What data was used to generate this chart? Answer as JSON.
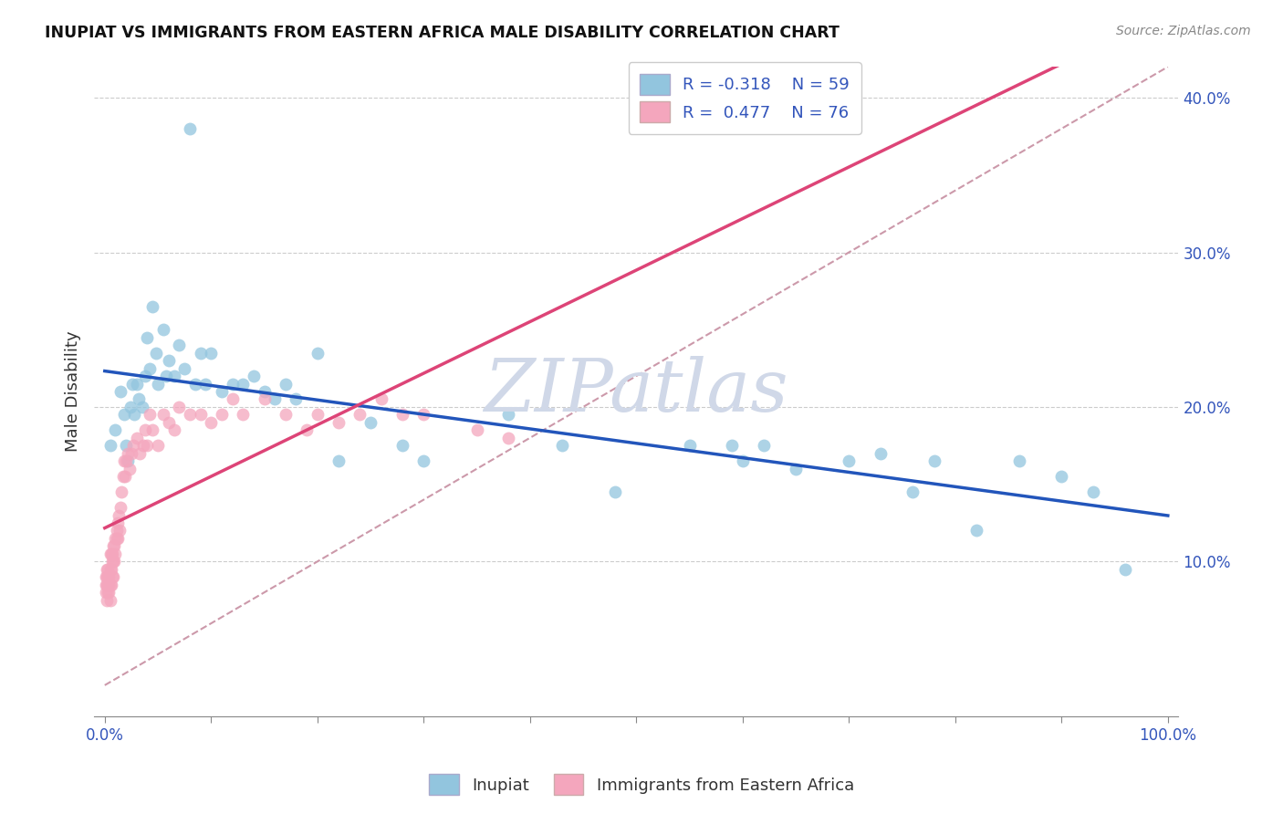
{
  "title": "INUPIAT VS IMMIGRANTS FROM EASTERN AFRICA MALE DISABILITY CORRELATION CHART",
  "source": "Source: ZipAtlas.com",
  "ylabel": "Male Disability",
  "r1": "-0.318",
  "n1": "59",
  "r2": "0.477",
  "n2": "76",
  "legend_label1": "Inupiat",
  "legend_label2": "Immigrants from Eastern Africa",
  "color1": "#92c5de",
  "color2": "#f4a6bd",
  "line1_color": "#2255bb",
  "line2_color": "#dd4477",
  "trend_line_color": "#cc99aa",
  "background_color": "#ffffff",
  "watermark": "ZIPatlas",
  "watermark_color": "#d0d8e8",
  "inupiat_x": [
    0.005,
    0.01,
    0.015,
    0.018,
    0.02,
    0.022,
    0.024,
    0.026,
    0.028,
    0.03,
    0.032,
    0.035,
    0.038,
    0.04,
    0.042,
    0.045,
    0.048,
    0.05,
    0.055,
    0.058,
    0.06,
    0.065,
    0.07,
    0.075,
    0.08,
    0.085,
    0.09,
    0.095,
    0.1,
    0.11,
    0.12,
    0.13,
    0.14,
    0.15,
    0.16,
    0.17,
    0.18,
    0.2,
    0.22,
    0.25,
    0.28,
    0.3,
    0.38,
    0.43,
    0.48,
    0.55,
    0.59,
    0.6,
    0.62,
    0.65,
    0.7,
    0.73,
    0.76,
    0.78,
    0.82,
    0.86,
    0.9,
    0.93,
    0.96
  ],
  "inupiat_y": [
    0.175,
    0.185,
    0.21,
    0.195,
    0.175,
    0.165,
    0.2,
    0.215,
    0.195,
    0.215,
    0.205,
    0.2,
    0.22,
    0.245,
    0.225,
    0.265,
    0.235,
    0.215,
    0.25,
    0.22,
    0.23,
    0.22,
    0.24,
    0.225,
    0.38,
    0.215,
    0.235,
    0.215,
    0.235,
    0.21,
    0.215,
    0.215,
    0.22,
    0.21,
    0.205,
    0.215,
    0.205,
    0.235,
    0.165,
    0.19,
    0.175,
    0.165,
    0.195,
    0.175,
    0.145,
    0.175,
    0.175,
    0.165,
    0.175,
    0.16,
    0.165,
    0.17,
    0.145,
    0.165,
    0.12,
    0.165,
    0.155,
    0.145,
    0.095
  ],
  "eastern_africa_x": [
    0.001,
    0.001,
    0.001,
    0.002,
    0.002,
    0.002,
    0.002,
    0.003,
    0.003,
    0.003,
    0.003,
    0.004,
    0.004,
    0.004,
    0.005,
    0.005,
    0.005,
    0.005,
    0.006,
    0.006,
    0.006,
    0.007,
    0.007,
    0.007,
    0.008,
    0.008,
    0.008,
    0.009,
    0.009,
    0.01,
    0.01,
    0.011,
    0.011,
    0.012,
    0.012,
    0.013,
    0.014,
    0.015,
    0.016,
    0.017,
    0.018,
    0.019,
    0.02,
    0.022,
    0.023,
    0.025,
    0.027,
    0.03,
    0.033,
    0.036,
    0.038,
    0.04,
    0.042,
    0.045,
    0.05,
    0.055,
    0.06,
    0.065,
    0.07,
    0.08,
    0.09,
    0.1,
    0.11,
    0.12,
    0.13,
    0.15,
    0.17,
    0.19,
    0.2,
    0.22,
    0.24,
    0.26,
    0.28,
    0.3,
    0.35,
    0.38
  ],
  "eastern_africa_y": [
    0.085,
    0.09,
    0.08,
    0.095,
    0.085,
    0.075,
    0.09,
    0.095,
    0.08,
    0.09,
    0.085,
    0.09,
    0.085,
    0.08,
    0.105,
    0.095,
    0.085,
    0.075,
    0.105,
    0.095,
    0.085,
    0.105,
    0.1,
    0.09,
    0.11,
    0.1,
    0.09,
    0.11,
    0.1,
    0.115,
    0.105,
    0.12,
    0.115,
    0.125,
    0.115,
    0.13,
    0.12,
    0.135,
    0.145,
    0.155,
    0.165,
    0.155,
    0.165,
    0.17,
    0.16,
    0.17,
    0.175,
    0.18,
    0.17,
    0.175,
    0.185,
    0.175,
    0.195,
    0.185,
    0.175,
    0.195,
    0.19,
    0.185,
    0.2,
    0.195,
    0.195,
    0.19,
    0.195,
    0.205,
    0.195,
    0.205,
    0.195,
    0.185,
    0.195,
    0.19,
    0.195,
    0.205,
    0.195,
    0.195,
    0.185,
    0.18
  ],
  "xlim": [
    -0.01,
    1.01
  ],
  "ylim": [
    0.0,
    0.42
  ],
  "right_yticks": [
    0.1,
    0.2,
    0.3,
    0.4
  ],
  "right_ytick_labels": [
    "10.0%",
    "20.0%",
    "30.0%",
    "40.0%"
  ],
  "xtick_positions": [
    0.0,
    1.0
  ],
  "xtick_labels": [
    "0.0%",
    "100.0%"
  ]
}
